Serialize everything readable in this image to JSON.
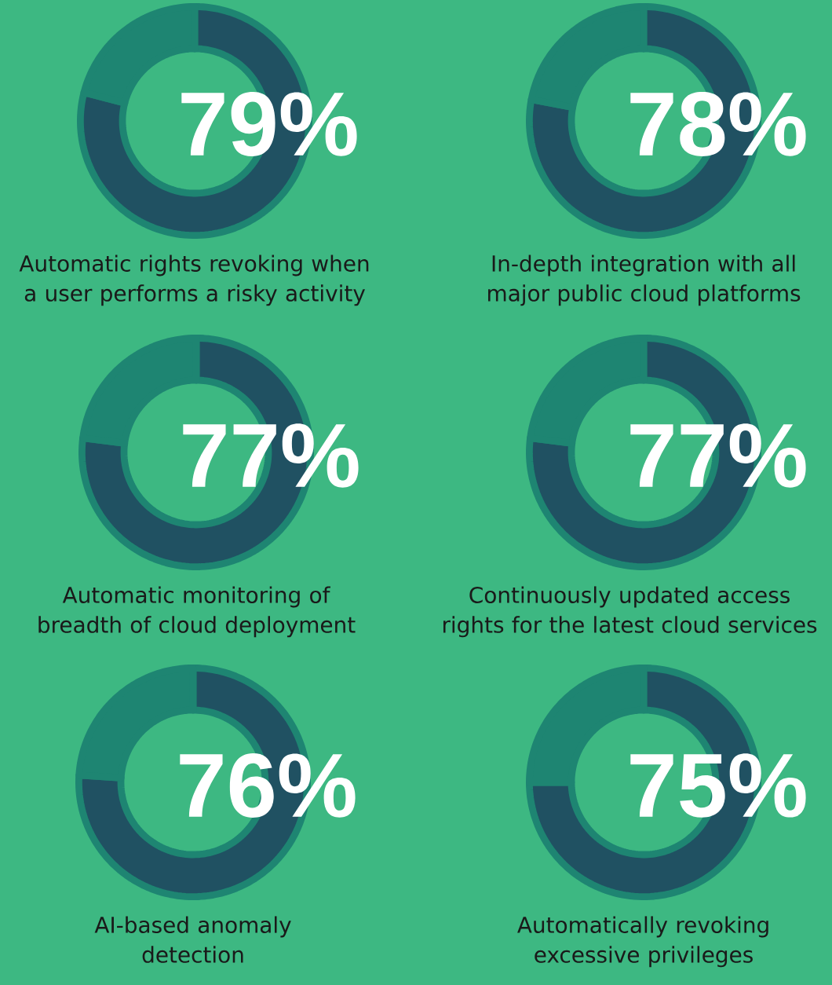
{
  "chart_data": [
    {
      "type": "donut",
      "title": "Automatic rights revoking when a user performs a risky activity",
      "categories": [
        null,
        null
      ],
      "values": [
        79,
        21
      ],
      "colors": [
        "#205162",
        "#1e8572"
      ],
      "value_labels": [
        "79%",
        null
      ]
    },
    {
      "type": "donut",
      "title": "In-depth integration with all major public cloud platforms",
      "categories": [
        null,
        null
      ],
      "values": [
        78,
        22
      ],
      "colors": [
        "#205162",
        "#1e8572"
      ],
      "value_labels": [
        "78%",
        null
      ]
    },
    {
      "type": "donut",
      "title": "Automatic monitoring of breadth of cloud deployment",
      "categories": [
        null,
        null
      ],
      "values": [
        77,
        23
      ],
      "colors": [
        "#205162",
        "#1e8572"
      ],
      "value_labels": [
        "77%",
        null
      ]
    },
    {
      "type": "donut",
      "title": "Continuously updated access rights for the latest cloud services",
      "categories": [
        null,
        null
      ],
      "values": [
        77,
        23
      ],
      "colors": [
        "#205162",
        "#1e8572"
      ],
      "value_labels": [
        "77%",
        null
      ]
    },
    {
      "type": "donut",
      "title": "AI-based anomaly detection",
      "categories": [
        null,
        null
      ],
      "values": [
        76,
        24
      ],
      "colors": [
        "#205162",
        "#1e8572"
      ],
      "value_labels": [
        "76%",
        null
      ]
    },
    {
      "type": "donut",
      "title": "Automatically revoking excessive privileges",
      "categories": [
        null,
        null
      ],
      "values": [
        75,
        25
      ],
      "colors": [
        "#205162",
        "#1e8572"
      ],
      "value_labels": [
        "75%",
        null
      ]
    }
  ]
}
